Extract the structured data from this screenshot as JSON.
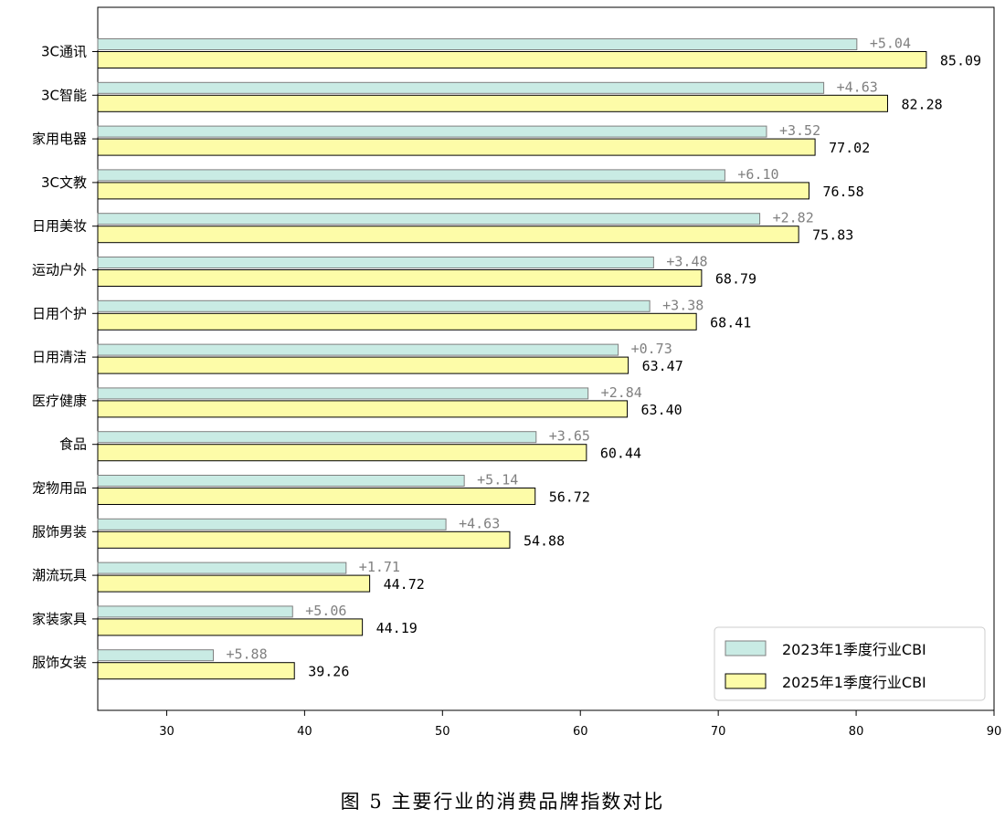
{
  "chart_data": {
    "type": "bar",
    "orientation": "horizontal",
    "categories": [
      "3C通讯",
      "3C智能",
      "家用电器",
      "3C文教",
      "日用美妆",
      "运动户外",
      "日用个护",
      "日用清洁",
      "医疗健康",
      "食品",
      "宠物用品",
      "服饰男装",
      "潮流玩具",
      "家装家具",
      "服饰女装"
    ],
    "series": [
      {
        "name": "2023年1季度行业CBI",
        "color": "#c9ebe4",
        "values": [
          80.05,
          77.65,
          73.5,
          70.48,
          73.01,
          65.31,
          65.03,
          62.74,
          60.56,
          56.79,
          51.58,
          50.25,
          43.01,
          39.13,
          33.38
        ],
        "diff_labels": [
          "+5.04",
          "+4.63",
          "+3.52",
          "+6.10",
          "+2.82",
          "+3.48",
          "+3.38",
          "+0.73",
          "+2.84",
          "+3.65",
          "+5.14",
          "+4.63",
          "+1.71",
          "+5.06",
          "+5.88"
        ]
      },
      {
        "name": "2025年1季度行业CBI",
        "color": "#fdfca8",
        "values": [
          85.09,
          82.28,
          77.02,
          76.58,
          75.83,
          68.79,
          68.41,
          63.47,
          63.4,
          60.44,
          56.72,
          54.88,
          44.72,
          44.19,
          39.26
        ],
        "value_labels": [
          "85.09",
          "82.28",
          "77.02",
          "76.58",
          "75.83",
          "68.79",
          "68.41",
          "63.47",
          "63.40",
          "60.44",
          "56.72",
          "54.88",
          "44.72",
          "44.19",
          "39.26"
        ]
      }
    ],
    "xlim": [
      25,
      90
    ],
    "xticks": [
      30,
      40,
      50,
      60,
      70,
      80,
      90
    ],
    "xtick_labels": [
      "30",
      "40",
      "50",
      "60",
      "70",
      "80",
      "90"
    ],
    "legend_placement": "bottom-right",
    "grid": false
  },
  "caption": "图 5 主要行业的消费品牌指数对比"
}
